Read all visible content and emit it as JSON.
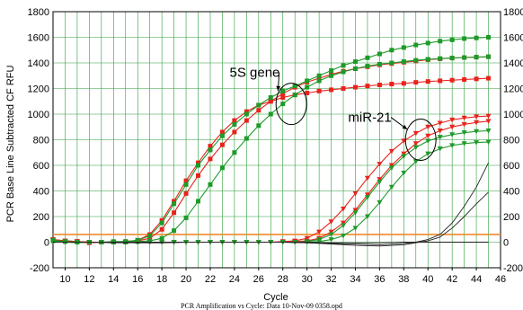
{
  "chart_data": {
    "type": "line",
    "title": "",
    "xlabel": "Cycle",
    "ylabel": "PCR Base Line Subtracted CF RFU",
    "caption": "PCR Amplification vs Cycle: Data 10-Nov-09 0358.opd",
    "xlim": [
      9,
      46
    ],
    "ylim": [
      -200,
      1800
    ],
    "x_ticks": [
      "10",
      "12",
      "14",
      "16",
      "18",
      "20",
      "22",
      "24",
      "26",
      "28",
      "30",
      "32",
      "34",
      "36",
      "38",
      "40",
      "42",
      "44",
      "46"
    ],
    "y_ticks": [
      "-200",
      "0",
      "200",
      "400",
      "600",
      "800",
      "1000",
      "1200",
      "1400",
      "1600",
      "1800"
    ],
    "y_ticks_right": [
      "-200",
      "0",
      "200",
      "400",
      "600",
      "800",
      "1000",
      "1200",
      "1400",
      "1600",
      "1800"
    ],
    "grid": true,
    "threshold": 60,
    "threshold_color": "#f08a2a",
    "annotations": [
      {
        "text": "5S gene",
        "x": 23.6,
        "y": 1290,
        "circle": [
          28.7,
          1080
        ],
        "arrow_to": [
          27.6,
          1180
        ]
      },
      {
        "text": "miR-21",
        "x": 33.4,
        "y": 940,
        "circle": [
          39.4,
          800
        ],
        "arrow_to": [
          38.3,
          880
        ]
      }
    ],
    "series": [
      {
        "color": "#e8231c",
        "marker": "square",
        "x": [
          9,
          10,
          11,
          12,
          13,
          14,
          15,
          16,
          17,
          18,
          19,
          20,
          21,
          22,
          23,
          24,
          25,
          26,
          27,
          28,
          29,
          30,
          31,
          32,
          33,
          34,
          35,
          36,
          37,
          38,
          39,
          40,
          41,
          42,
          43,
          44,
          45
        ],
        "y": [
          15,
          10,
          5,
          0,
          0,
          0,
          5,
          15,
          60,
          170,
          320,
          480,
          620,
          750,
          860,
          950,
          1020,
          1070,
          1100,
          1130,
          1150,
          1165,
          1180,
          1190,
          1200,
          1210,
          1220,
          1228,
          1235,
          1240,
          1248,
          1255,
          1260,
          1265,
          1270,
          1275,
          1280
        ]
      },
      {
        "color": "#e8231c",
        "marker": "square",
        "x": [
          9,
          10,
          11,
          12,
          13,
          14,
          15,
          16,
          17,
          18,
          19,
          20,
          21,
          22,
          23,
          24,
          25,
          26,
          27,
          28,
          29,
          30,
          31,
          32,
          33,
          34,
          35,
          36,
          37,
          38,
          39,
          40,
          41,
          42,
          43,
          44,
          45
        ],
        "y": [
          15,
          5,
          0,
          -5,
          0,
          0,
          0,
          10,
          30,
          100,
          230,
          380,
          520,
          650,
          760,
          860,
          950,
          1030,
          1100,
          1160,
          1210,
          1250,
          1280,
          1310,
          1335,
          1355,
          1370,
          1385,
          1395,
          1405,
          1415,
          1425,
          1432,
          1438,
          1442,
          1445,
          1448
        ]
      },
      {
        "color": "#1e9a2a",
        "marker": "square",
        "x": [
          9,
          10,
          11,
          12,
          13,
          14,
          15,
          16,
          17,
          18,
          19,
          20,
          21,
          22,
          23,
          24,
          25,
          26,
          27,
          28,
          29,
          30,
          31,
          32,
          33,
          34,
          35,
          36,
          37,
          38,
          39,
          40,
          41,
          42,
          43,
          44,
          45
        ],
        "y": [
          20,
          10,
          5,
          0,
          0,
          5,
          5,
          15,
          50,
          150,
          300,
          450,
          600,
          720,
          830,
          920,
          1000,
          1070,
          1130,
          1180,
          1220,
          1260,
          1300,
          1340,
          1380,
          1410,
          1440,
          1470,
          1500,
          1520,
          1540,
          1555,
          1570,
          1580,
          1590,
          1595,
          1600
        ]
      },
      {
        "color": "#1e9a2a",
        "marker": "square",
        "x": [
          9,
          10,
          11,
          12,
          13,
          14,
          15,
          16,
          17,
          18,
          19,
          20,
          21,
          22,
          23,
          24,
          25,
          26,
          27,
          28,
          29,
          30,
          31,
          32,
          33,
          34,
          35,
          36,
          37,
          38,
          39,
          40,
          41,
          42,
          43,
          44,
          45
        ],
        "y": [
          10,
          5,
          0,
          0,
          0,
          0,
          0,
          5,
          10,
          30,
          90,
          190,
          320,
          450,
          580,
          700,
          810,
          910,
          1000,
          1080,
          1150,
          1210,
          1260,
          1300,
          1330,
          1355,
          1375,
          1390,
          1400,
          1410,
          1420,
          1428,
          1434,
          1438,
          1442,
          1445,
          1448
        ]
      },
      {
        "color": "#e8231c",
        "marker": "triangle-down",
        "x": [
          9,
          10,
          11,
          12,
          13,
          14,
          15,
          16,
          17,
          18,
          19,
          20,
          21,
          22,
          23,
          24,
          25,
          26,
          27,
          28,
          29,
          30,
          31,
          32,
          33,
          34,
          35,
          36,
          37,
          38,
          39,
          40,
          41,
          42,
          43,
          44,
          45
        ],
        "y": [
          20,
          10,
          5,
          0,
          0,
          0,
          0,
          0,
          0,
          0,
          0,
          0,
          0,
          0,
          0,
          0,
          0,
          0,
          0,
          5,
          10,
          30,
          80,
          160,
          260,
          380,
          500,
          610,
          710,
          790,
          850,
          900,
          930,
          955,
          970,
          980,
          985
        ]
      },
      {
        "color": "#e8231c",
        "marker": "triangle-down",
        "x": [
          9,
          10,
          11,
          12,
          13,
          14,
          15,
          16,
          17,
          18,
          19,
          20,
          21,
          22,
          23,
          24,
          25,
          26,
          27,
          28,
          29,
          30,
          31,
          32,
          33,
          34,
          35,
          36,
          37,
          38,
          39,
          40,
          41,
          42,
          43,
          44,
          45
        ],
        "y": [
          15,
          5,
          0,
          0,
          0,
          0,
          0,
          0,
          0,
          0,
          0,
          0,
          0,
          0,
          0,
          0,
          0,
          0,
          0,
          0,
          5,
          10,
          30,
          80,
          150,
          250,
          370,
          490,
          600,
          690,
          770,
          830,
          870,
          900,
          920,
          935,
          945
        ]
      },
      {
        "color": "#1e9a2a",
        "marker": "triangle-down",
        "x": [
          9,
          10,
          11,
          12,
          13,
          14,
          15,
          16,
          17,
          18,
          19,
          20,
          21,
          22,
          23,
          24,
          25,
          26,
          27,
          28,
          29,
          30,
          31,
          32,
          33,
          34,
          35,
          36,
          37,
          38,
          39,
          40,
          41,
          42,
          43,
          44,
          45
        ],
        "y": [
          15,
          5,
          0,
          0,
          0,
          0,
          0,
          0,
          0,
          0,
          0,
          0,
          0,
          0,
          0,
          0,
          0,
          0,
          0,
          0,
          0,
          5,
          20,
          60,
          130,
          230,
          350,
          470,
          580,
          670,
          740,
          790,
          820,
          840,
          855,
          865,
          870
        ]
      },
      {
        "color": "#1e9a2a",
        "marker": "triangle-down",
        "x": [
          9,
          10,
          11,
          12,
          13,
          14,
          15,
          16,
          17,
          18,
          19,
          20,
          21,
          22,
          23,
          24,
          25,
          26,
          27,
          28,
          29,
          30,
          31,
          32,
          33,
          34,
          35,
          36,
          37,
          38,
          39,
          40,
          41,
          42,
          43,
          44,
          45
        ],
        "y": [
          10,
          0,
          -5,
          0,
          0,
          0,
          0,
          0,
          0,
          0,
          0,
          0,
          0,
          0,
          0,
          0,
          0,
          0,
          0,
          0,
          0,
          0,
          5,
          20,
          50,
          110,
          200,
          310,
          430,
          540,
          630,
          690,
          730,
          755,
          770,
          778,
          782
        ]
      },
      {
        "color": "#222222",
        "marker": "none",
        "x": [
          9,
          10,
          12,
          14,
          16,
          18,
          20,
          22,
          24,
          26,
          28,
          30,
          32,
          34,
          36,
          38,
          39,
          40,
          41,
          42,
          43,
          44,
          45
        ],
        "y": [
          0,
          0,
          0,
          -5,
          -5,
          -5,
          0,
          0,
          0,
          0,
          0,
          -5,
          -10,
          -15,
          -20,
          -10,
          0,
          20,
          60,
          150,
          280,
          430,
          620
        ]
      },
      {
        "color": "#222222",
        "marker": "none",
        "x": [
          9,
          10,
          12,
          14,
          16,
          18,
          20,
          22,
          24,
          26,
          28,
          30,
          32,
          34,
          36,
          38,
          39,
          40,
          41,
          42,
          43,
          44,
          45
        ],
        "y": [
          0,
          0,
          0,
          0,
          -5,
          -5,
          0,
          0,
          0,
          0,
          0,
          -5,
          -15,
          -25,
          -30,
          -20,
          -5,
          10,
          40,
          110,
          200,
          300,
          390
        ]
      },
      {
        "color": "#222222",
        "marker": "none",
        "x": [
          9,
          10,
          12,
          14,
          16,
          18,
          20,
          22,
          24,
          26,
          28,
          30,
          32,
          34,
          36,
          38,
          40,
          42,
          44,
          45
        ],
        "y": [
          0,
          0,
          0,
          0,
          0,
          0,
          0,
          0,
          0,
          0,
          0,
          0,
          -5,
          -5,
          -5,
          0,
          0,
          0,
          0,
          0
        ]
      }
    ]
  }
}
